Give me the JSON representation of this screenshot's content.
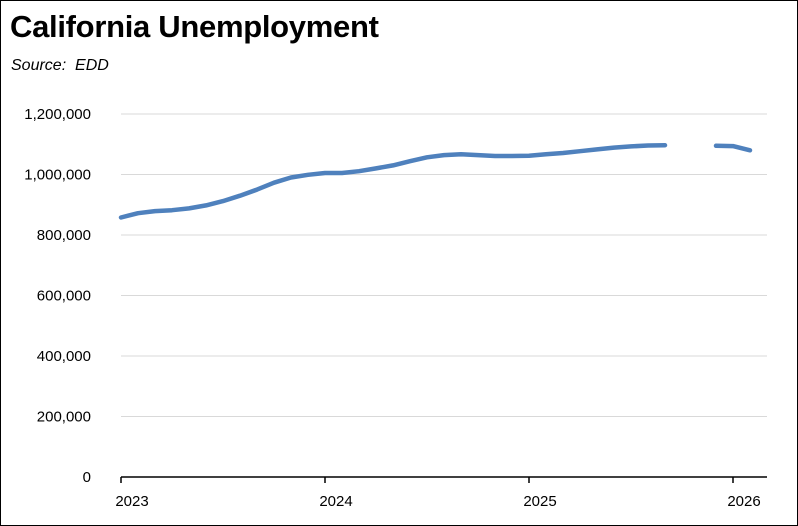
{
  "chart_data": {
    "type": "line",
    "title": "California Unemployment",
    "subtitle": "Source:  EDD",
    "xlabel": "",
    "ylabel": "",
    "ylim": [
      0,
      1200000
    ],
    "y_ticks": [
      0,
      200000,
      400000,
      600000,
      800000,
      1000000,
      1200000
    ],
    "y_tick_labels": [
      "0",
      "200,000",
      "400,000",
      "600,000",
      "800,000",
      "1,000,000",
      "1,200,000"
    ],
    "x_tick_labels": [
      "2023",
      "2024",
      "2025",
      "2026"
    ],
    "x_ticks": [
      "2023-01",
      "2024-01",
      "2025-01",
      "2026-01"
    ],
    "grid": true,
    "legend": "none",
    "series_color": "#4F81BD",
    "series": [
      {
        "values": [
          {
            "x": "2023-01",
            "y": 858000
          },
          {
            "x": "2023-02",
            "y": 872000
          },
          {
            "x": "2023-03",
            "y": 879000
          },
          {
            "x": "2023-04",
            "y": 882000
          },
          {
            "x": "2023-05",
            "y": 888000
          },
          {
            "x": "2023-06",
            "y": 898000
          },
          {
            "x": "2023-07",
            "y": 912000
          },
          {
            "x": "2023-08",
            "y": 930000
          },
          {
            "x": "2023-09",
            "y": 950000
          },
          {
            "x": "2023-10",
            "y": 973000
          },
          {
            "x": "2023-11",
            "y": 990000
          },
          {
            "x": "2023-12",
            "y": 999000
          },
          {
            "x": "2024-01",
            "y": 1005000
          },
          {
            "x": "2024-02",
            "y": 1005000
          },
          {
            "x": "2024-03",
            "y": 1011000
          },
          {
            "x": "2024-04",
            "y": 1020000
          },
          {
            "x": "2024-05",
            "y": 1030000
          },
          {
            "x": "2024-06",
            "y": 1044000
          },
          {
            "x": "2024-07",
            "y": 1057000
          },
          {
            "x": "2024-08",
            "y": 1064000
          },
          {
            "x": "2024-09",
            "y": 1067000
          },
          {
            "x": "2024-10",
            "y": 1064000
          },
          {
            "x": "2024-11",
            "y": 1061000
          },
          {
            "x": "2024-12",
            "y": 1061000
          },
          {
            "x": "2025-01",
            "y": 1062000
          },
          {
            "x": "2025-02",
            "y": 1067000
          },
          {
            "x": "2025-03",
            "y": 1071000
          },
          {
            "x": "2025-04",
            "y": 1077000
          },
          {
            "x": "2025-05",
            "y": 1083000
          },
          {
            "x": "2025-06",
            "y": 1089000
          },
          {
            "x": "2025-07",
            "y": 1093000
          },
          {
            "x": "2025-08",
            "y": 1096000
          },
          {
            "x": "2025-09",
            "y": 1097000
          },
          {
            "x": "2025-10",
            "y": null
          },
          {
            "x": "2025-11",
            "y": null
          },
          {
            "x": "2025-12",
            "y": 1095000
          },
          {
            "x": "2026-01",
            "y": 1094000
          },
          {
            "x": "2026-02",
            "y": 1080000
          }
        ]
      }
    ]
  }
}
